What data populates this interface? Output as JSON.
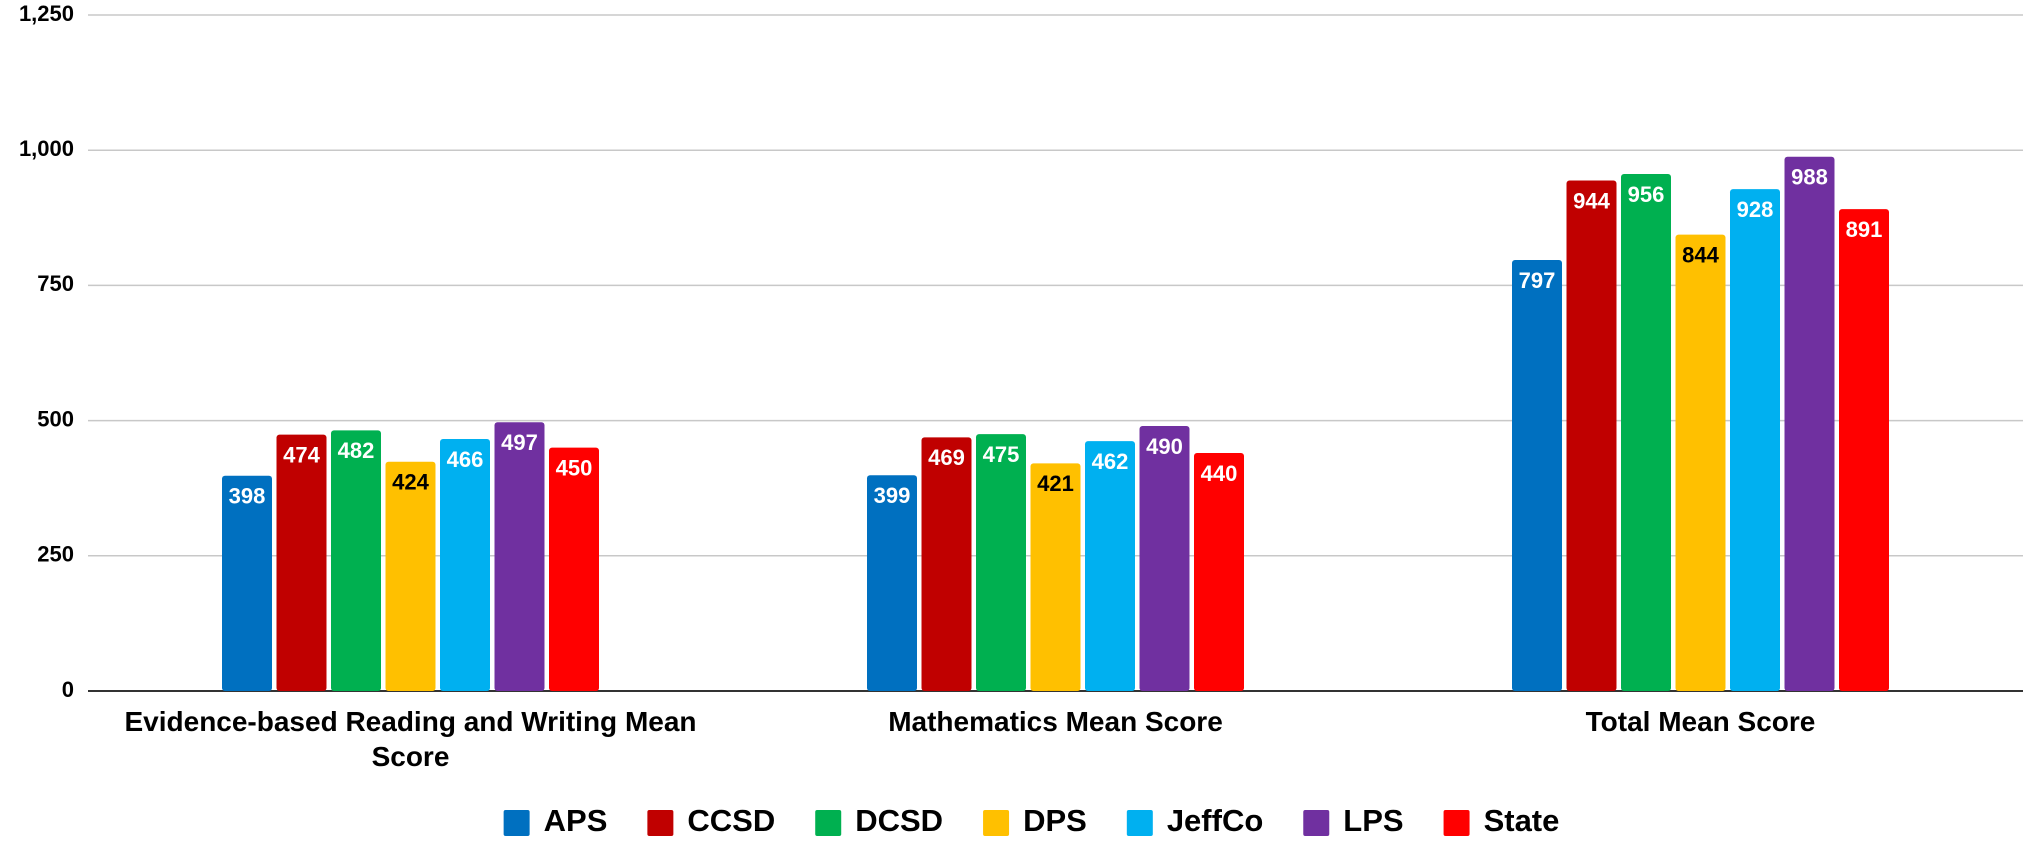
{
  "chart_data": {
    "type": "bar",
    "categories": [
      "Evidence-based Reading and Writing Mean Score",
      "Mathematics Mean Score",
      "Total Mean Score"
    ],
    "series": [
      {
        "name": "APS",
        "color": "#0070c0",
        "values": [
          398,
          399,
          797
        ]
      },
      {
        "name": "CCSD",
        "color": "#c00000",
        "values": [
          474,
          469,
          944
        ]
      },
      {
        "name": "DCSD",
        "color": "#00b050",
        "values": [
          482,
          475,
          956
        ]
      },
      {
        "name": "DPS",
        "color": "#ffc000",
        "values": [
          424,
          421,
          844
        ]
      },
      {
        "name": "JeffCo",
        "color": "#00b0f0",
        "values": [
          466,
          462,
          928
        ]
      },
      {
        "name": "LPS",
        "color": "#7030a0",
        "values": [
          497,
          490,
          988
        ]
      },
      {
        "name": "State",
        "color": "#ff0000",
        "values": [
          450,
          440,
          891
        ]
      }
    ],
    "ylim": [
      0,
      1250
    ],
    "yticks": [
      0,
      250,
      500,
      750,
      {
        "value": 1000,
        "label": "1,000"
      },
      {
        "value": 1250,
        "label": "1,250"
      }
    ],
    "grid": true,
    "legend": "bottom"
  }
}
